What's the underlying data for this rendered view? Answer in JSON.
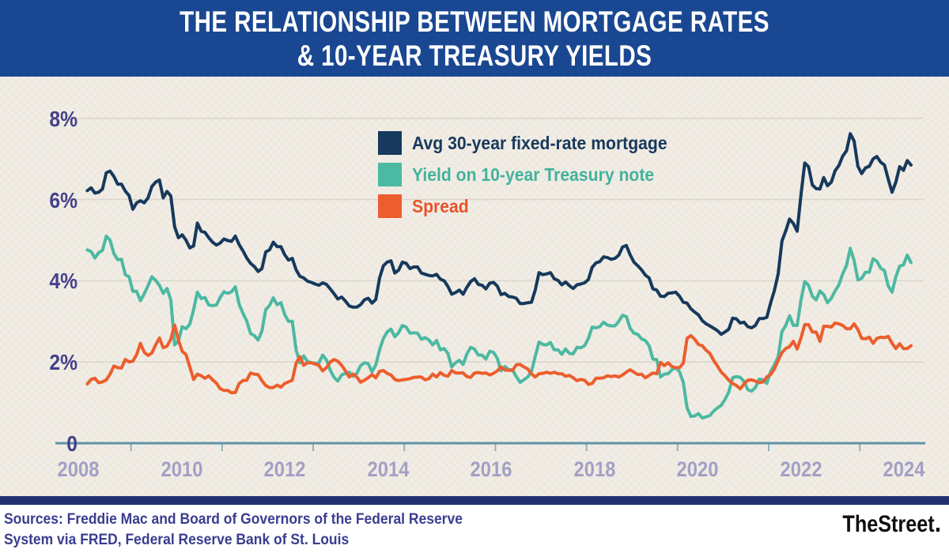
{
  "banner": {
    "title_line1": "THE RELATIONSHIP BETWEEN MORTGAGE RATES",
    "title_line2": "& 10-YEAR TREASURY YIELDS"
  },
  "colors": {
    "banner_blue": "#1a4791",
    "background_cream": "#f1ede5",
    "mortgage_navy": "#16395c",
    "treasury_teal": "#4cb9a2",
    "spread_orange": "#ec5e2d",
    "y_label": "#44408a",
    "x_label": "#a3a0c5",
    "axis": "#6093a8",
    "gridline": "#dcd7cd",
    "footer_bar_navy": "#22306f",
    "sources_text": "#3a3d8f"
  },
  "chart_data": {
    "type": "line",
    "title": "The relationship between mortgage rates & 10-year Treasury yields",
    "x_domain": "monthly data, Jan 2007 through Feb 2025",
    "grid": "horizontal only",
    "legend_position": "inside top-center",
    "y_axis": {
      "label": "percent",
      "min": 0,
      "max": 8,
      "tick_labels": [
        "8%",
        "6%",
        "4%",
        "2%",
        "0"
      ],
      "grid_values": [
        8,
        6,
        4,
        2
      ]
    },
    "x_axis": {
      "tick_labels": [
        "2008",
        "2010",
        "2012",
        "2014",
        "2016",
        "2018",
        "2020",
        "2022",
        "2024"
      ],
      "tick_years": [
        2008,
        2010,
        2012,
        2014,
        2016,
        2018,
        2020,
        2022,
        2024
      ]
    },
    "series": [
      {
        "name": "Avg 30-year fixed-rate mortgage",
        "color": "#16395c",
        "values": [
          6.22,
          6.29,
          6.16,
          6.18,
          6.26,
          6.66,
          6.7,
          6.57,
          6.38,
          6.38,
          6.21,
          6.1,
          5.76,
          5.92,
          5.97,
          5.92,
          6.04,
          6.32,
          6.43,
          6.48,
          6.04,
          6.2,
          6.09,
          5.33,
          5.06,
          5.13,
          5.0,
          4.81,
          4.86,
          5.42,
          5.22,
          5.19,
          5.06,
          4.95,
          4.88,
          4.93,
          5.03,
          4.99,
          4.97,
          5.1,
          4.89,
          4.74,
          4.56,
          4.43,
          4.35,
          4.23,
          4.3,
          4.71,
          4.76,
          4.95,
          4.84,
          4.84,
          4.64,
          4.51,
          4.55,
          4.27,
          4.11,
          4.07,
          3.99,
          3.96,
          3.92,
          3.89,
          3.95,
          3.91,
          3.8,
          3.68,
          3.55,
          3.6,
          3.5,
          3.38,
          3.35,
          3.35,
          3.41,
          3.53,
          3.57,
          3.45,
          3.54,
          4.07,
          4.37,
          4.46,
          4.49,
          4.19,
          4.26,
          4.46,
          4.43,
          4.3,
          4.34,
          4.34,
          4.19,
          4.16,
          4.13,
          4.12,
          4.16,
          4.04,
          4.0,
          3.86,
          3.67,
          3.71,
          3.77,
          3.67,
          3.84,
          3.98,
          4.05,
          3.91,
          3.89,
          3.8,
          3.94,
          3.96,
          3.87,
          3.66,
          3.69,
          3.61,
          3.6,
          3.57,
          3.44,
          3.44,
          3.46,
          3.47,
          3.77,
          4.2,
          4.15,
          4.17,
          4.2,
          4.05,
          4.01,
          3.9,
          3.97,
          3.88,
          3.81,
          3.9,
          3.92,
          3.95,
          4.03,
          4.33,
          4.44,
          4.47,
          4.59,
          4.57,
          4.53,
          4.55,
          4.63,
          4.83,
          4.87,
          4.64,
          4.46,
          4.37,
          4.27,
          4.14,
          4.07,
          3.8,
          3.77,
          3.62,
          3.61,
          3.69,
          3.7,
          3.72,
          3.62,
          3.47,
          3.45,
          3.31,
          3.23,
          3.16,
          3.02,
          2.94,
          2.89,
          2.83,
          2.77,
          2.68,
          2.74,
          2.81,
          3.08,
          3.06,
          2.96,
          2.98,
          2.87,
          2.84,
          2.9,
          3.07,
          3.07,
          3.1,
          3.45,
          3.76,
          4.17,
          4.98,
          5.23,
          5.52,
          5.41,
          5.22,
          6.11,
          6.9,
          6.81,
          6.36,
          6.27,
          6.26,
          6.54,
          6.34,
          6.43,
          6.71,
          6.84,
          7.07,
          7.2,
          7.62,
          7.44,
          6.82,
          6.64,
          6.78,
          6.82,
          7.0,
          7.06,
          6.92,
          6.85,
          6.5,
          6.18,
          6.43,
          6.81,
          6.72,
          6.96,
          6.85
        ]
      },
      {
        "name": "Yield on 10-year Treasury note",
        "color": "#4cb9a2",
        "values": [
          4.76,
          4.72,
          4.56,
          4.69,
          4.75,
          5.1,
          5.0,
          4.67,
          4.52,
          4.53,
          4.15,
          4.1,
          3.74,
          3.74,
          3.51,
          3.68,
          3.88,
          4.1,
          4.01,
          3.89,
          3.69,
          3.81,
          3.53,
          2.42,
          2.52,
          2.87,
          2.82,
          2.93,
          3.29,
          3.72,
          3.56,
          3.59,
          3.4,
          3.39,
          3.4,
          3.59,
          3.73,
          3.69,
          3.73,
          3.85,
          3.42,
          3.2,
          3.01,
          2.7,
          2.65,
          2.54,
          2.76,
          3.29,
          3.39,
          3.58,
          3.41,
          3.46,
          3.17,
          3.0,
          3.0,
          2.3,
          1.98,
          2.15,
          2.01,
          1.98,
          1.97,
          1.97,
          2.17,
          2.05,
          1.8,
          1.62,
          1.53,
          1.68,
          1.72,
          1.75,
          1.65,
          1.72,
          1.91,
          1.98,
          1.96,
          1.76,
          1.93,
          2.3,
          2.58,
          2.74,
          2.81,
          2.62,
          2.72,
          2.9,
          2.86,
          2.71,
          2.72,
          2.71,
          2.56,
          2.6,
          2.54,
          2.42,
          2.53,
          2.3,
          2.33,
          2.21,
          1.88,
          1.98,
          2.04,
          1.94,
          2.2,
          2.36,
          2.32,
          2.17,
          2.17,
          2.07,
          2.26,
          2.24,
          2.09,
          1.78,
          1.89,
          1.81,
          1.81,
          1.64,
          1.5,
          1.56,
          1.63,
          1.76,
          2.14,
          2.49,
          2.43,
          2.42,
          2.48,
          2.3,
          2.3,
          2.19,
          2.32,
          2.21,
          2.2,
          2.36,
          2.35,
          2.4,
          2.58,
          2.86,
          2.84,
          2.87,
          2.98,
          2.91,
          2.89,
          2.89,
          3.0,
          3.15,
          3.12,
          2.83,
          2.71,
          2.68,
          2.57,
          2.53,
          2.4,
          2.07,
          2.06,
          1.63,
          1.7,
          1.71,
          1.81,
          1.86,
          1.76,
          1.5,
          0.87,
          0.66,
          0.67,
          0.73,
          0.62,
          0.65,
          0.68,
          0.79,
          0.87,
          0.93,
          1.08,
          1.26,
          1.61,
          1.64,
          1.62,
          1.52,
          1.32,
          1.28,
          1.37,
          1.58,
          1.56,
          1.47,
          1.76,
          1.93,
          2.13,
          2.75,
          2.9,
          3.14,
          2.9,
          2.9,
          3.52,
          3.98,
          3.89,
          3.62,
          3.53,
          3.75,
          3.66,
          3.46,
          3.57,
          3.75,
          3.9,
          4.17,
          4.38,
          4.8,
          4.5,
          4.02,
          4.06,
          4.21,
          4.21,
          4.54,
          4.48,
          4.31,
          4.25,
          3.87,
          3.72,
          4.1,
          4.36,
          4.39,
          4.63,
          4.45
        ]
      },
      {
        "name": "Spread",
        "color": "#ec5e2d",
        "values": [
          1.46,
          1.57,
          1.6,
          1.49,
          1.51,
          1.56,
          1.7,
          1.9,
          1.86,
          1.85,
          2.06,
          2.0,
          2.02,
          2.18,
          2.46,
          2.24,
          2.16,
          2.22,
          2.42,
          2.59,
          2.35,
          2.39,
          2.56,
          2.91,
          2.54,
          2.26,
          2.18,
          1.88,
          1.57,
          1.7,
          1.66,
          1.6,
          1.66,
          1.56,
          1.48,
          1.34,
          1.3,
          1.3,
          1.24,
          1.25,
          1.47,
          1.54,
          1.55,
          1.73,
          1.7,
          1.69,
          1.54,
          1.42,
          1.37,
          1.37,
          1.43,
          1.38,
          1.47,
          1.51,
          1.55,
          1.97,
          2.13,
          1.92,
          1.98,
          1.98,
          1.95,
          1.92,
          1.78,
          1.86,
          2.0,
          2.06,
          2.02,
          1.92,
          1.78,
          1.63,
          1.7,
          1.63,
          1.5,
          1.55,
          1.61,
          1.69,
          1.61,
          1.77,
          1.79,
          1.72,
          1.68,
          1.57,
          1.54,
          1.56,
          1.57,
          1.59,
          1.62,
          1.63,
          1.63,
          1.56,
          1.59,
          1.7,
          1.63,
          1.74,
          1.67,
          1.65,
          1.79,
          1.73,
          1.73,
          1.73,
          1.64,
          1.62,
          1.73,
          1.74,
          1.72,
          1.73,
          1.68,
          1.72,
          1.78,
          1.88,
          1.8,
          1.8,
          1.79,
          1.93,
          1.94,
          1.88,
          1.83,
          1.71,
          1.63,
          1.71,
          1.72,
          1.75,
          1.72,
          1.75,
          1.71,
          1.71,
          1.65,
          1.67,
          1.61,
          1.54,
          1.57,
          1.55,
          1.45,
          1.47,
          1.6,
          1.6,
          1.61,
          1.66,
          1.64,
          1.66,
          1.63,
          1.68,
          1.75,
          1.81,
          1.75,
          1.69,
          1.7,
          1.61,
          1.67,
          1.73,
          1.71,
          1.99,
          1.91,
          1.98,
          1.89,
          1.86,
          1.86,
          1.97,
          2.58,
          2.65,
          2.56,
          2.43,
          2.4,
          2.29,
          2.21,
          2.04,
          1.9,
          1.75,
          1.66,
          1.55,
          1.47,
          1.42,
          1.34,
          1.46,
          1.55,
          1.56,
          1.53,
          1.49,
          1.51,
          1.63,
          1.69,
          1.83,
          2.04,
          2.23,
          2.33,
          2.38,
          2.51,
          2.32,
          2.59,
          2.92,
          2.92,
          2.74,
          2.74,
          2.51,
          2.88,
          2.88,
          2.86,
          2.96,
          2.94,
          2.9,
          2.82,
          2.82,
          2.94,
          2.8,
          2.58,
          2.57,
          2.61,
          2.46,
          2.58,
          2.61,
          2.6,
          2.63,
          2.46,
          2.33,
          2.45,
          2.33,
          2.33,
          2.4
        ]
      }
    ]
  },
  "footer": {
    "sources_line1": "Sources: Freddie Mac and Board of Governors of the Federal Reserve",
    "sources_line2": "System via FRED, Federal Reserve Bank of St. Louis",
    "brand": "TheStreet"
  }
}
